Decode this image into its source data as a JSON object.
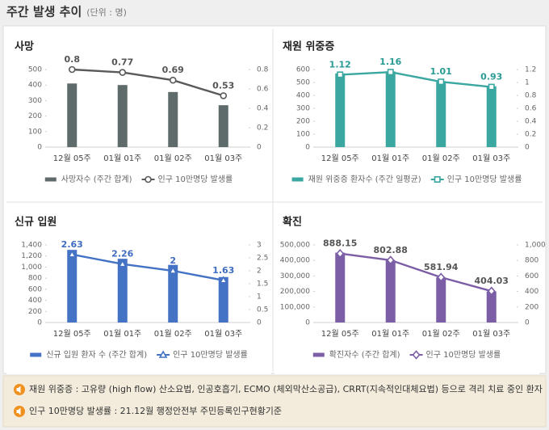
{
  "title": "주간 발생 추이",
  "unit": "(단위 : 명)",
  "chart_data": [
    {
      "type": "bar",
      "title": "사망",
      "categories": [
        "12월 05주",
        "01월 01주",
        "01월 02주",
        "01월 03주"
      ],
      "series": [
        {
          "name": "사망자수 (주간 합계)",
          "type": "bar",
          "color": "#5f6b6a",
          "values": [
            410,
            400,
            355,
            270
          ]
        },
        {
          "name": "인구 10만명당 발생률",
          "type": "line",
          "axis": "y2",
          "color": "#5a5a5a",
          "label_color": "#555555",
          "marker": "circle",
          "values": [
            0.8,
            0.77,
            0.69,
            0.53
          ]
        }
      ],
      "ylim": [
        0,
        500
      ],
      "yticks": [
        0,
        100,
        200,
        300,
        400,
        500
      ],
      "y2lim": [
        0,
        0.8
      ],
      "y2ticks": [
        0,
        0.2,
        0.4,
        0.6,
        0.8
      ]
    },
    {
      "type": "bar",
      "title": "재원 위중증",
      "categories": [
        "12월 05주",
        "01월 01주",
        "01월 02주",
        "01월 03주"
      ],
      "series": [
        {
          "name": "재원 위중증 환자수 (주간 일평균)",
          "type": "bar",
          "color": "#3ba7a1",
          "values": [
            570,
            585,
            510,
            470
          ]
        },
        {
          "name": "인구 10만명당 발생률",
          "type": "line",
          "axis": "y2",
          "color": "#3ba7a1",
          "label_color": "#2a9a94",
          "marker": "square",
          "values": [
            1.12,
            1.16,
            1.01,
            0.93
          ]
        }
      ],
      "ylim": [
        0,
        600
      ],
      "yticks": [
        0,
        100,
        200,
        300,
        400,
        500,
        600
      ],
      "y2lim": [
        0,
        1.2
      ],
      "y2ticks": [
        0,
        0.2,
        0.4,
        0.6,
        0.8,
        1,
        1.2
      ]
    },
    {
      "type": "bar",
      "title": "신규 입원",
      "categories": [
        "12월 05주",
        "01월 01주",
        "01월 02주",
        "01월 03주"
      ],
      "series": [
        {
          "name": "신규 입원 환자 수 (주간 합계)",
          "type": "bar",
          "color": "#4472c4",
          "values": [
            1310,
            1150,
            1040,
            820
          ]
        },
        {
          "name": "인구 10만명당 발생률",
          "type": "line",
          "axis": "y2",
          "color": "#4472c4",
          "label_color": "#3f6cc0",
          "marker": "triangle",
          "values": [
            2.63,
            2.26,
            2,
            1.63
          ]
        }
      ],
      "ylim": [
        0,
        1400
      ],
      "yticks": [
        0,
        200,
        400,
        600,
        800,
        {
          "value": 1000,
          "label": "1,000"
        },
        {
          "value": 1200,
          "label": "1,200"
        },
        {
          "value": 1400,
          "label": "1,400"
        }
      ],
      "y2lim": [
        0,
        3
      ],
      "y2ticks": [
        0,
        0.5,
        1,
        1.5,
        2,
        2.5,
        3
      ]
    },
    {
      "type": "bar",
      "title": "확진",
      "categories": [
        "12월 05주",
        "01월 01주",
        "01월 02주",
        "01월 03주"
      ],
      "series": [
        {
          "name": "확진자수 (주간 합계)",
          "type": "bar",
          "color": "#7b5ea6",
          "values": [
            450000,
            400000,
            290000,
            200000
          ]
        },
        {
          "name": "인구 10만명당 발생률",
          "type": "line",
          "axis": "y2",
          "color": "#7b5ea6",
          "label_color": "#555555",
          "marker": "diamond",
          "values": [
            888.15,
            802.88,
            581.94,
            404.03
          ]
        }
      ],
      "ylim": [
        0,
        500000
      ],
      "yticks": [
        0,
        {
          "value": 100000,
          "label": "100,000"
        },
        {
          "value": 200000,
          "label": "200,000"
        },
        {
          "value": 300000,
          "label": "300,000"
        },
        {
          "value": 400000,
          "label": "400,000"
        },
        {
          "value": 500000,
          "label": "500,000"
        }
      ],
      "y2lim": [
        0,
        1000
      ],
      "y2ticks": [
        0,
        200,
        400,
        600,
        800,
        {
          "value": 1000,
          "label": "1,000"
        }
      ]
    }
  ],
  "notes": [
    "재원 위중증 : 고유량 (high flow) 산소요법, 인공호흡기, ECMO (체외막산소공급), CRRT(지속적인대체요법) 등으로 격리 치료 중인 환자",
    "인구 10만명당 발생률 : 21.12월 행정안전부 주민등록인구현황기준"
  ]
}
